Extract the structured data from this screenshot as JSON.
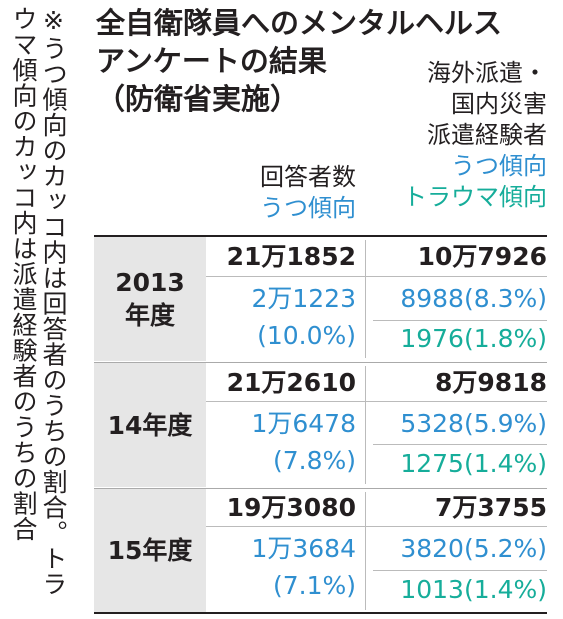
{
  "note": "※うつ傾向のカッコ内は回答者のうちの割合。トラウマ傾向のカッコ内は派遣経験者のうちの割合",
  "title": {
    "line1": "全自衛隊員へのメンタルヘルス",
    "line2": "アンケートの結果",
    "line3": "（防衛省実施）"
  },
  "columns": {
    "all": {
      "label": "回答者数",
      "sub": "うつ傾向"
    },
    "dispatched": {
      "label1": "海外派遣・",
      "label2": "国内災害",
      "label3": "派遣経験者",
      "sub1": "うつ傾向",
      "sub2": "トラウマ傾向"
    }
  },
  "colors": {
    "depression": "#2f8fd0",
    "trauma": "#16ad9a",
    "year_band": "#e6e6e6"
  },
  "chart_data": {
    "type": "table",
    "rows": [
      {
        "year_line1": "2013",
        "year_line2": "年度",
        "respondents": "21万1852",
        "respondents_depression": "2万1223",
        "respondents_depression_pct": "(10.0%)",
        "dispatched": "10万7926",
        "dispatched_depression": "8988(8.3%)",
        "dispatched_trauma": "1976(1.8%)"
      },
      {
        "year_line1": "14年度",
        "year_line2": "",
        "respondents": "21万2610",
        "respondents_depression": "1万6478",
        "respondents_depression_pct": "(7.8%)",
        "dispatched": "8万9818",
        "dispatched_depression": "5328(5.9%)",
        "dispatched_trauma": "1275(1.4%)"
      },
      {
        "year_line1": "15年度",
        "year_line2": "",
        "respondents": "19万3080",
        "respondents_depression": "1万3684",
        "respondents_depression_pct": "(7.1%)",
        "dispatched": "7万3755",
        "dispatched_depression": "3820(5.2%)",
        "dispatched_trauma": "1013(1.4%)"
      }
    ]
  }
}
